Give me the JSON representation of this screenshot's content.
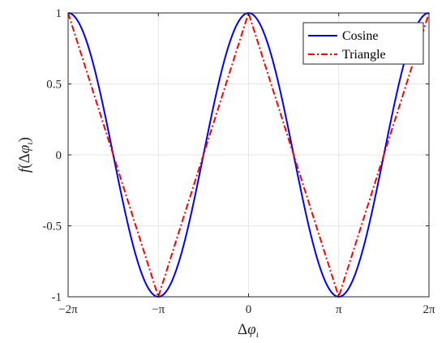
{
  "chart_data": {
    "type": "line",
    "xlabel": "Δφ_ι",
    "ylabel": "f(Δφ_ι)",
    "xlim": [
      -6.283185307179586,
      6.283185307179586
    ],
    "ylim": [
      -1,
      1
    ],
    "grid": true,
    "legend_position": "top-right",
    "x_ticks": [
      {
        "value": -6.283185307179586,
        "label": "−2π"
      },
      {
        "value": -3.141592653589793,
        "label": "−π"
      },
      {
        "value": 0,
        "label": "0"
      },
      {
        "value": 3.141592653589793,
        "label": "π"
      },
      {
        "value": 6.283185307179586,
        "label": "2π"
      }
    ],
    "y_ticks": [
      {
        "value": 1,
        "label": "1"
      },
      {
        "value": 0.5,
        "label": "0.5"
      },
      {
        "value": 0,
        "label": "0"
      },
      {
        "value": -0.5,
        "label": "-0.5"
      },
      {
        "value": -1,
        "label": "-1"
      }
    ],
    "series": [
      {
        "name": "Cosine",
        "color": "#0000ff",
        "style": "solid",
        "x": [
          -6.283185307179586,
          -5.497787143782138,
          -4.71238898038469,
          -3.9269908169872414,
          -3.141592653589793,
          -2.356194490192345,
          -1.5707963267948966,
          -0.7853981633974483,
          0,
          0.7853981633974483,
          1.5707963267948966,
          2.356194490192345,
          3.141592653589793,
          3.9269908169872414,
          4.71238898038469,
          5.497787143782138,
          6.283185307179586
        ],
        "y": [
          1,
          0.7071,
          0,
          -0.7071,
          -1,
          -0.7071,
          0,
          0.7071,
          1,
          0.7071,
          0,
          -0.7071,
          -1,
          -0.7071,
          0,
          0.7071,
          1
        ]
      },
      {
        "name": "Triangle",
        "color": "#ff0000",
        "style": "dashdot",
        "x": [
          -6.283185307179586,
          -3.141592653589793,
          0,
          3.141592653589793,
          6.283185307179586
        ],
        "y": [
          1,
          -1,
          1,
          -1,
          1
        ]
      }
    ]
  }
}
